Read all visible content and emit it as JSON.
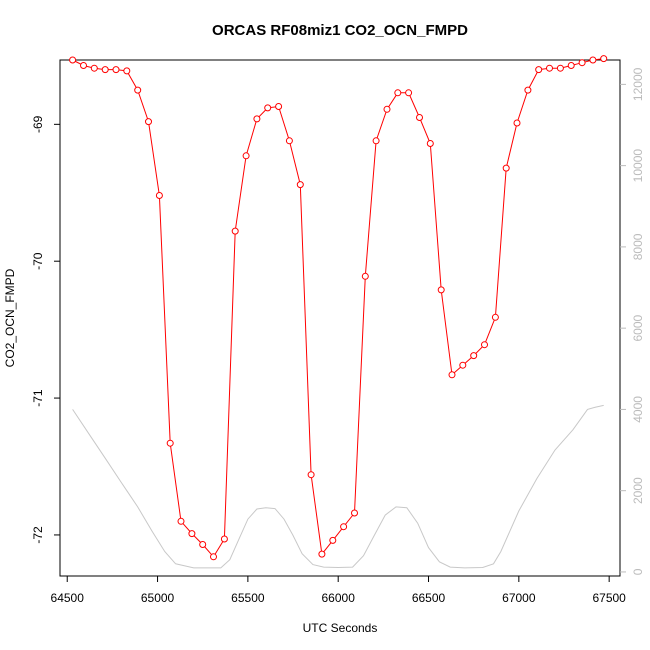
{
  "chart_data": {
    "type": "line",
    "title": "ORCAS RF08miz1 CO2_OCN_FMPD",
    "xlabel": "UTC Seconds",
    "ylabel": "CO2_OCN_FMPD",
    "xlim": [
      64460,
      67560
    ],
    "ylim": [
      -72.3,
      -68.53
    ],
    "y2lim": [
      -100,
      12600
    ],
    "x_ticks": [
      64500,
      65000,
      65500,
      66000,
      66500,
      67000,
      67500
    ],
    "y_ticks": [
      -72,
      -71,
      -70,
      -69
    ],
    "y2_ticks": [
      0,
      2000,
      4000,
      6000,
      8000,
      10000,
      12000
    ],
    "grid": false,
    "series": [
      {
        "role": "primary",
        "color": "#ff0000",
        "marker": "open-circle",
        "x": [
          64530,
          64590,
          64650,
          64710,
          64770,
          64830,
          64890,
          64950,
          65010,
          65070,
          65130,
          65190,
          65250,
          65310,
          65370,
          65430,
          65490,
          65550,
          65610,
          65670,
          65730,
          65790,
          65850,
          65910,
          65970,
          66030,
          66090,
          66150,
          66210,
          66270,
          66330,
          66390,
          66450,
          66510,
          66570,
          66630,
          66690,
          66750,
          66810,
          66870,
          66930,
          66990,
          67050,
          67110,
          67170,
          67230,
          67290,
          67350,
          67410,
          67470
        ],
        "y": [
          -68.53,
          -68.57,
          -68.59,
          -68.6,
          -68.6,
          -68.61,
          -68.75,
          -68.98,
          -69.52,
          -71.33,
          -71.9,
          -71.99,
          -72.07,
          -72.16,
          -72.03,
          -69.78,
          -69.23,
          -68.96,
          -68.88,
          -68.87,
          -69.12,
          -69.44,
          -71.56,
          -72.14,
          -72.04,
          -71.94,
          -71.84,
          -70.11,
          -69.12,
          -68.89,
          -68.77,
          -68.77,
          -68.95,
          -69.14,
          -70.21,
          -70.83,
          -70.76,
          -70.69,
          -70.61,
          -70.41,
          -69.32,
          -68.99,
          -68.75,
          -68.6,
          -68.59,
          -68.59,
          -68.57,
          -68.55,
          -68.53,
          -68.52
        ]
      },
      {
        "role": "secondary",
        "axis": "right",
        "color": "#c8c8c8",
        "x": [
          64530,
          64620,
          64710,
          64800,
          64890,
          64970,
          65040,
          65100,
          65200,
          65300,
          65350,
          65400,
          65450,
          65500,
          65550,
          65600,
          65650,
          65700,
          65750,
          65800,
          65860,
          65920,
          66000,
          66080,
          66140,
          66200,
          66260,
          66320,
          66380,
          66440,
          66500,
          66560,
          66620,
          66700,
          66800,
          66860,
          66900,
          66950,
          67000,
          67100,
          67200,
          67300,
          67380,
          67420,
          67470
        ],
        "y": [
          4000,
          3400,
          2800,
          2200,
          1600,
          1000,
          500,
          200,
          100,
          100,
          100,
          300,
          800,
          1300,
          1550,
          1580,
          1560,
          1300,
          900,
          450,
          180,
          120,
          110,
          120,
          400,
          900,
          1400,
          1600,
          1580,
          1200,
          600,
          250,
          120,
          100,
          110,
          200,
          500,
          1000,
          1500,
          2300,
          3000,
          3500,
          4000,
          4050,
          4100
        ]
      }
    ]
  }
}
